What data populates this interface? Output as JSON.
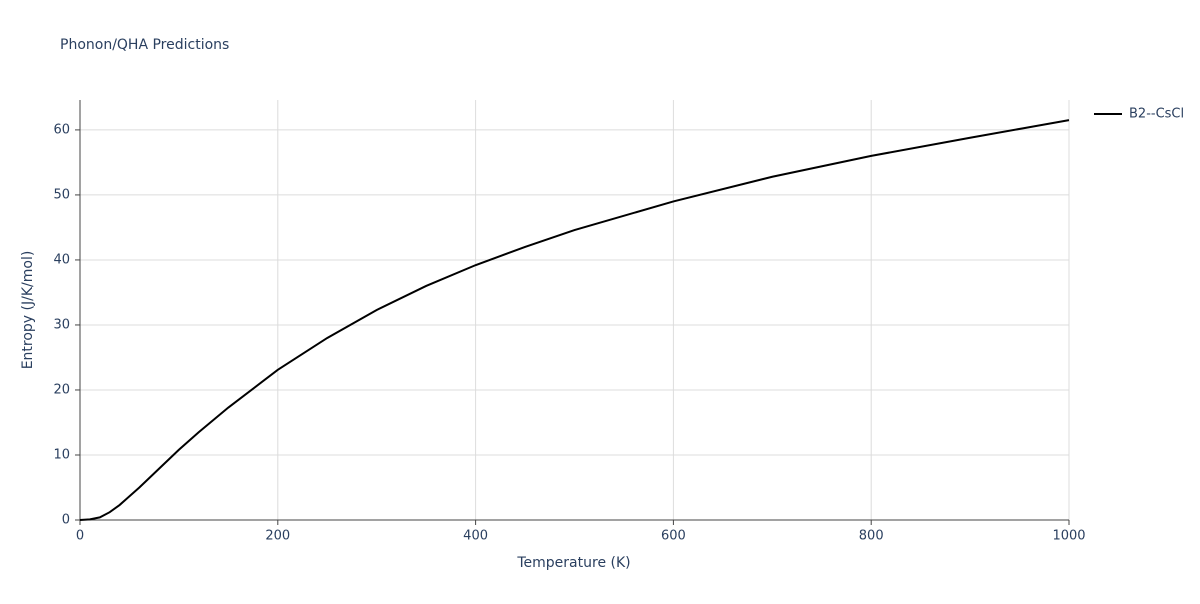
{
  "chart_data": {
    "type": "line",
    "title": "Phonon/QHA Predictions",
    "x_label": "Temperature (K)",
    "y_label": "Entropy (J/K/mol)",
    "x": [
      0,
      10,
      20,
      30,
      40,
      60,
      80,
      100,
      120,
      150,
      200,
      250,
      300,
      350,
      400,
      450,
      500,
      600,
      700,
      800,
      900,
      1000
    ],
    "series": [
      {
        "name": "B2--CsCl",
        "color": "#000000",
        "values": [
          0,
          0.1,
          0.4,
          1.2,
          2.3,
          5,
          7.9,
          10.8,
          13.5,
          17.3,
          23.1,
          28,
          32.3,
          36,
          39.2,
          42,
          44.6,
          49,
          52.8,
          56,
          58.8,
          61.5
        ]
      }
    ],
    "xlim": [
      0,
      1000
    ],
    "ylim": [
      0,
      64.6
    ],
    "xticks": [
      0,
      200,
      400,
      600,
      800,
      1000
    ],
    "yticks": [
      0,
      10,
      20,
      30,
      40,
      50,
      60
    ],
    "grid": true,
    "legend_position": "top-right"
  }
}
